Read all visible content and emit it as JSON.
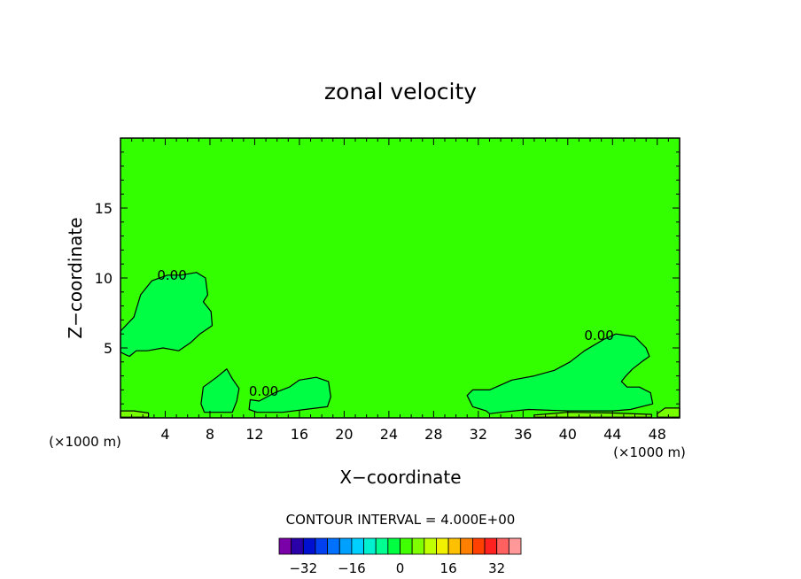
{
  "chart_data": {
    "type": "heatmap",
    "title": "zonal velocity",
    "xlabel": "X−coordinate",
    "ylabel": "Z−coordinate",
    "x_unit_label": "(×1000 m)",
    "x_unit_label_right": "(×1000 m)",
    "xlim": [
      0,
      50
    ],
    "ylim": [
      0,
      20
    ],
    "x_ticks": [
      4,
      8,
      12,
      16,
      20,
      24,
      28,
      32,
      36,
      40,
      44,
      48
    ],
    "y_ticks": [
      5,
      10,
      15
    ],
    "contour_interval_text": "CONTOUR INTERVAL = 4.000E+00",
    "contour_labels": [
      {
        "text": "0.00",
        "x": 4.6,
        "z": 10.2
      },
      {
        "text": "0.00",
        "x": 12.8,
        "z": 1.9
      },
      {
        "text": "0.00",
        "x": 42.8,
        "z": 5.9
      }
    ],
    "colorbar": {
      "tick_labels": [
        "−32",
        "−16",
        "0",
        "16",
        "32"
      ],
      "tick_values": [
        -32,
        -16,
        0,
        16,
        32
      ],
      "min": -40,
      "max": 40,
      "colors": [
        "#7a00a8",
        "#2a00a8",
        "#0010d0",
        "#0040f0",
        "#0070ff",
        "#00a0ff",
        "#00d0ff",
        "#00f0d0",
        "#00ff90",
        "#00ff40",
        "#40ff00",
        "#80ff00",
        "#c0ff00",
        "#f0f000",
        "#ffc000",
        "#ff8000",
        "#ff4000",
        "#ff2020",
        "#ff6060",
        "#ff9999"
      ]
    },
    "field": {
      "background_value": 2,
      "colors": {
        "background": "#33ff00",
        "slightly_negative": "#00ff44",
        "slightly_positive": "#77ff00"
      },
      "regions": [
        {
          "value": -1,
          "points": [
            [
              0,
              6.2
            ],
            [
              1.2,
              7.2
            ],
            [
              1.8,
              8.8
            ],
            [
              2.8,
              9.8
            ],
            [
              4.2,
              10.2
            ],
            [
              5.4,
              10.2
            ],
            [
              6.8,
              10.4
            ],
            [
              7.6,
              10.0
            ],
            [
              7.8,
              8.8
            ],
            [
              7.4,
              8.3
            ],
            [
              8.1,
              7.6
            ],
            [
              8.2,
              6.6
            ],
            [
              7.1,
              6.0
            ],
            [
              6.3,
              5.4
            ],
            [
              5.2,
              4.8
            ],
            [
              3.8,
              5.0
            ],
            [
              2.4,
              4.8
            ],
            [
              1.4,
              4.8
            ],
            [
              0.8,
              4.4
            ],
            [
              0.5,
              4.5
            ],
            [
              0,
              4.7
            ]
          ]
        },
        {
          "value": -1,
          "points": [
            [
              33,
              2.0
            ],
            [
              35,
              2.7
            ],
            [
              37,
              3.0
            ],
            [
              38.8,
              3.4
            ],
            [
              40.2,
              4.0
            ],
            [
              41.5,
              4.8
            ],
            [
              43.2,
              5.6
            ],
            [
              44.3,
              6.0
            ],
            [
              46,
              5.8
            ],
            [
              47,
              5.0
            ],
            [
              47.3,
              4.4
            ],
            [
              46.6,
              4.0
            ],
            [
              45.8,
              3.5
            ],
            [
              45.2,
              3.0
            ],
            [
              44.8,
              2.6
            ],
            [
              45.3,
              2.2
            ],
            [
              46.4,
              2.2
            ],
            [
              47.4,
              1.8
            ],
            [
              47.6,
              1.0
            ],
            [
              45.6,
              0.6
            ],
            [
              44,
              0.5
            ],
            [
              40,
              0.5
            ],
            [
              36.5,
              0.6
            ],
            [
              34,
              0.4
            ],
            [
              33,
              0.3
            ],
            [
              32.7,
              0.5
            ],
            [
              31.5,
              0.8
            ],
            [
              31,
              1.6
            ],
            [
              31.5,
              2.0
            ]
          ]
        },
        {
          "value": -1,
          "points": [
            [
              11.6,
              1.3
            ],
            [
              12.4,
              1.2
            ],
            [
              13.8,
              1.8
            ],
            [
              15.1,
              2.2
            ],
            [
              16,
              2.7
            ],
            [
              17.5,
              2.9
            ],
            [
              18.6,
              2.6
            ],
            [
              18.8,
              1.5
            ],
            [
              18.5,
              0.8
            ],
            [
              16.5,
              0.6
            ],
            [
              14.5,
              0.4
            ],
            [
              12.2,
              0.4
            ],
            [
              11.5,
              0.6
            ]
          ]
        },
        {
          "value": -1,
          "points": [
            [
              7.2,
              1.0
            ],
            [
              7.4,
              2.2
            ],
            [
              8.6,
              2.9
            ],
            [
              9.5,
              3.5
            ],
            [
              10,
              2.8
            ],
            [
              10.6,
              2.1
            ],
            [
              10.4,
              1.2
            ],
            [
              10,
              0.4
            ],
            [
              8.6,
              0.4
            ],
            [
              7.5,
              0.4
            ]
          ]
        },
        {
          "value": 3,
          "points": [
            [
              37,
              0.2
            ],
            [
              40,
              0.4
            ],
            [
              44,
              0.35
            ],
            [
              47.5,
              0.25
            ],
            [
              47.5,
              0.05
            ],
            [
              37,
              0.05
            ]
          ]
        },
        {
          "value": 3,
          "points": [
            [
              48,
              0.3
            ],
            [
              48.7,
              0.7
            ],
            [
              50,
              0.7
            ],
            [
              50,
              0.05
            ],
            [
              48,
              0.05
            ]
          ]
        },
        {
          "value": 3,
          "points": [
            [
              0,
              0.5
            ],
            [
              1.2,
              0.5
            ],
            [
              2.5,
              0.35
            ],
            [
              2.5,
              0.05
            ],
            [
              0,
              0.05
            ]
          ]
        }
      ]
    }
  }
}
